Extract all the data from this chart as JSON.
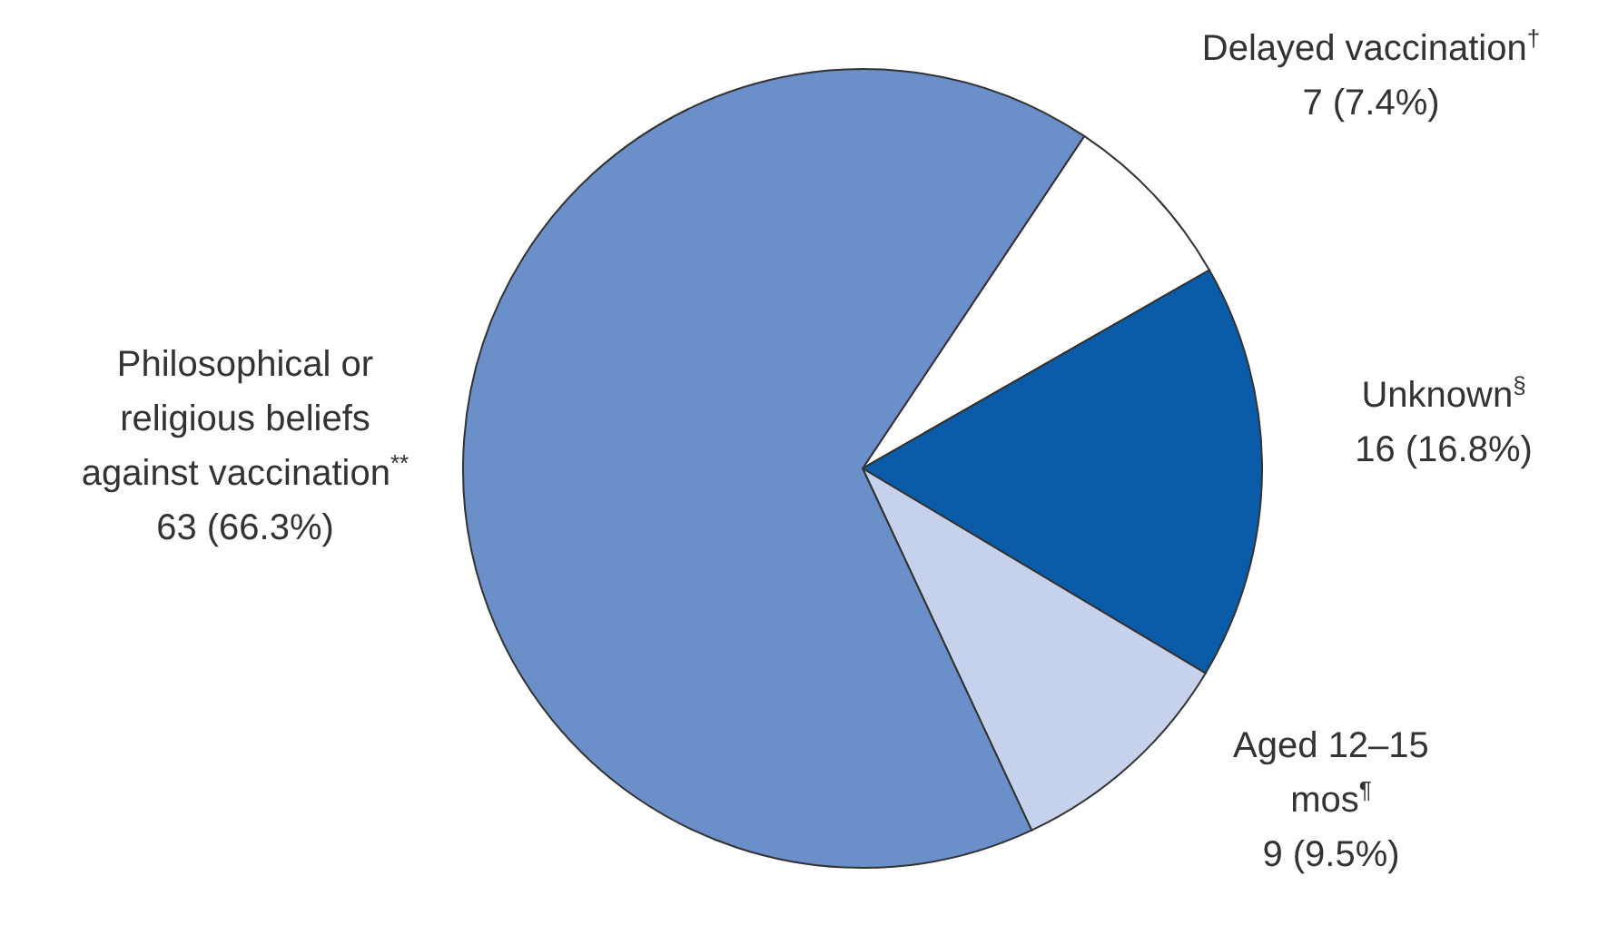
{
  "chart_data": {
    "type": "pie",
    "categories": [
      "Delayed vaccination$^{†}$",
      "Unknown$^{§}$",
      "Aged 12–15 mos$^{¶}$",
      "Philosophical or religious beliefs against vaccination$^{**}$"
    ],
    "values": [
      7,
      16,
      9,
      63
    ],
    "value_labels": [
      "7 (7.4%)",
      "16 (16.8%)",
      "9 (9.5%)",
      "63 (66.3%)"
    ],
    "colors": [
      "#ffffff",
      "#0a5ca8",
      "#c6d2ec",
      "#6a8fc9"
    ]
  }
}
